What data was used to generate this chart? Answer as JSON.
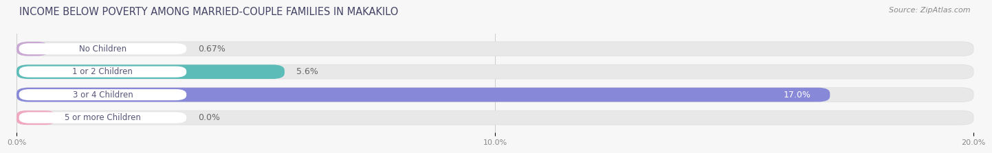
{
  "title": "INCOME BELOW POVERTY AMONG MARRIED-COUPLE FAMILIES IN MAKAKILO",
  "source": "Source: ZipAtlas.com",
  "categories": [
    "No Children",
    "1 or 2 Children",
    "3 or 4 Children",
    "5 or more Children"
  ],
  "values": [
    0.67,
    5.6,
    17.0,
    0.0
  ],
  "labels": [
    "0.67%",
    "5.6%",
    "17.0%",
    "0.0%"
  ],
  "bar_colors": [
    "#c9a8d4",
    "#5bbcb8",
    "#8888d8",
    "#f0a8c0"
  ],
  "xlim_max": 20.0,
  "xticks": [
    0.0,
    10.0,
    20.0
  ],
  "xticklabels": [
    "0.0%",
    "10.0%",
    "20.0%"
  ],
  "title_fontsize": 10.5,
  "source_fontsize": 8,
  "label_fontsize": 9,
  "category_fontsize": 8.5,
  "bar_height": 0.62,
  "background_color": "#f7f7f7",
  "bar_bg_color": "#e8e8e8",
  "pill_color": "#ffffff",
  "pill_text_color": "#555577",
  "label_color_dark": "#666666",
  "label_color_light": "#ffffff",
  "title_color": "#444466",
  "source_color": "#888888"
}
